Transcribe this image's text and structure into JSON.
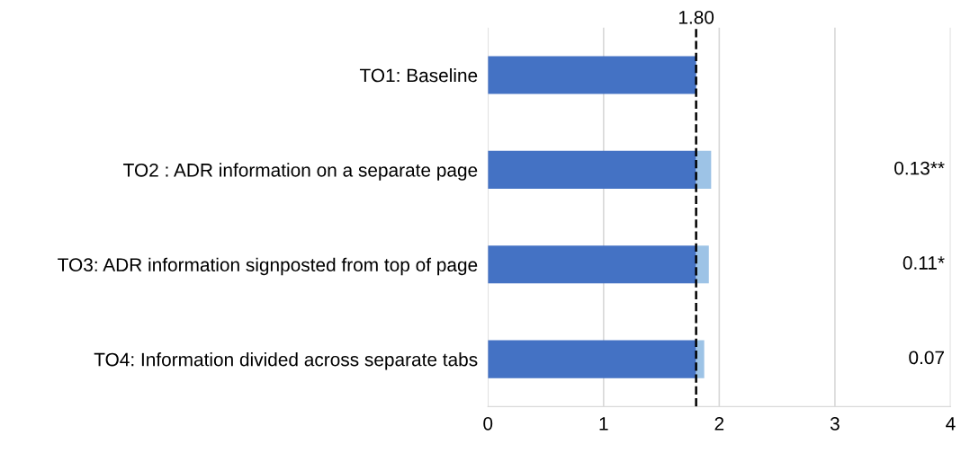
{
  "chart_data": {
    "type": "bar",
    "orientation": "horizontal",
    "stacked": true,
    "categories": [
      "TO1: Baseline",
      "TO2 : ADR information on a separate page",
      "TO3: ADR information signposted from top of page",
      "TO4: Information divided across separate tabs"
    ],
    "series": [
      {
        "color": "#4472c4",
        "values": [
          1.8,
          1.8,
          1.8,
          1.8
        ]
      },
      {
        "color": "#9dc3e6",
        "values": [
          0,
          0.13,
          0.11,
          0.07
        ]
      }
    ],
    "annotations": [
      "0.13**",
      "0.11*",
      "0.07"
    ],
    "xlim": [
      0,
      4
    ],
    "xticks": [
      0,
      1,
      2,
      3,
      4
    ],
    "grid": "x",
    "legend": false,
    "ref_lines": [
      {
        "axis": "x",
        "value": 1.8,
        "label": "1.80",
        "color": "#000000",
        "line_style": "dashed"
      }
    ]
  }
}
